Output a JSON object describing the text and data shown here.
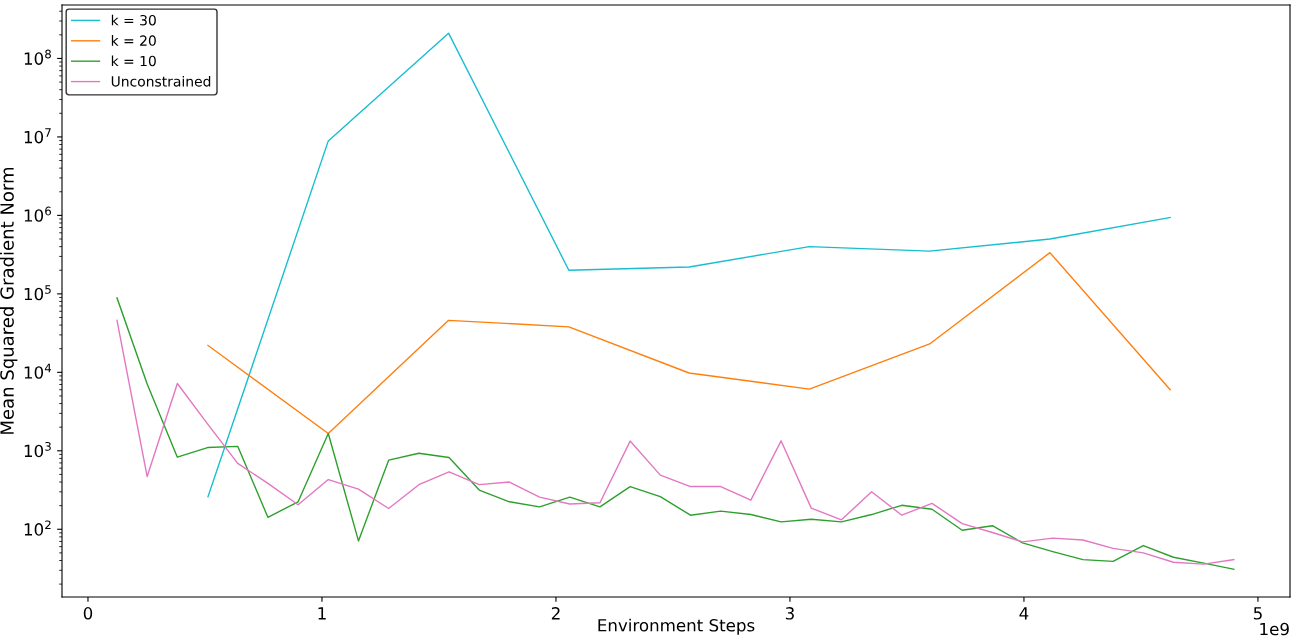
{
  "chart_data": {
    "type": "line",
    "xlabel": "Environment Steps",
    "ylabel": "Mean Squared Gradient Norm",
    "annotations": [
      "1e9"
    ],
    "log": "y",
    "grid": false,
    "legend": "top left",
    "marker": "none",
    "line_style": "solid",
    "xlim": [
      -0.111,
      5.137
    ],
    "xticks": [
      0,
      1,
      2,
      3,
      4,
      5
    ],
    "ylim": [
      13.7,
      480000000
    ],
    "yticks": [
      {
        "value": 100,
        "label": "10$^{2}$"
      },
      {
        "value": 1000,
        "label": "10$^{3}$"
      },
      {
        "value": 10000,
        "label": "10$^{4}$"
      },
      {
        "value": 100000,
        "label": "10$^{5}$"
      },
      {
        "value": 1000000,
        "label": "10$^{6}$"
      },
      {
        "value": 10000000,
        "label": "10$^{7}$"
      },
      {
        "value": 100000000,
        "label": "10$^{8}$"
      }
    ],
    "series": [
      {
        "name": "k = 30",
        "color": "#17becf",
        "x": [
          0.513,
          1.027,
          1.541,
          2.055,
          2.569,
          3.083,
          3.597,
          4.111,
          4.625
        ],
        "values": [
          260,
          8900000,
          210000000,
          200000,
          220000,
          400000,
          350000,
          500000,
          940000
        ]
      },
      {
        "name": "k = 20",
        "color": "#ff7f0e",
        "x": [
          0.513,
          1.027,
          1.541,
          2.055,
          2.569,
          3.083,
          3.597,
          4.111,
          4.625
        ],
        "values": [
          22000,
          1660,
          46000,
          38000,
          9800,
          6100,
          23000,
          335000,
          6000
        ]
      },
      {
        "name": "k = 10",
        "color": "#2ca02c",
        "x": [
          0.124,
          0.253,
          0.382,
          0.511,
          0.64,
          0.769,
          0.898,
          1.027,
          1.156,
          1.285,
          1.414,
          1.543,
          1.672,
          1.801,
          1.93,
          2.059,
          2.188,
          2.317,
          2.446,
          2.575,
          2.704,
          2.833,
          2.962,
          3.091,
          3.22,
          3.349,
          3.478,
          3.607,
          3.736,
          3.865,
          3.994,
          4.123,
          4.252,
          4.381,
          4.51,
          4.639,
          4.768,
          4.897
        ],
        "values": [
          89000,
          7100,
          830,
          1100,
          1140,
          142,
          224,
          1660,
          71,
          760,
          930,
          820,
          316,
          224,
          193,
          257,
          193,
          350,
          260,
          151,
          170,
          154,
          124,
          134,
          124,
          154,
          202,
          180,
          97,
          111,
          67,
          52,
          41,
          39,
          62,
          44,
          37,
          31
        ]
      },
      {
        "name": "Unconstrained",
        "color": "#e377c2",
        "x": [
          0.124,
          0.253,
          0.382,
          0.511,
          0.64,
          0.769,
          0.898,
          1.027,
          1.156,
          1.285,
          1.414,
          1.543,
          1.672,
          1.801,
          1.93,
          2.059,
          2.188,
          2.317,
          2.446,
          2.575,
          2.704,
          2.833,
          2.962,
          3.091,
          3.22,
          3.349,
          3.478,
          3.607,
          3.736,
          3.865,
          3.994,
          4.123,
          4.252,
          4.381,
          4.51,
          4.639,
          4.768,
          4.897
        ],
        "values": [
          46000,
          470,
          7200,
          2200,
          690,
          385,
          205,
          430,
          325,
          184,
          370,
          540,
          370,
          400,
          257,
          210,
          218,
          1330,
          490,
          350,
          350,
          235,
          1340,
          186,
          132,
          300,
          151,
          214,
          118,
          91,
          69,
          77,
          73,
          57,
          50,
          38,
          36,
          41
        ]
      }
    ]
  }
}
